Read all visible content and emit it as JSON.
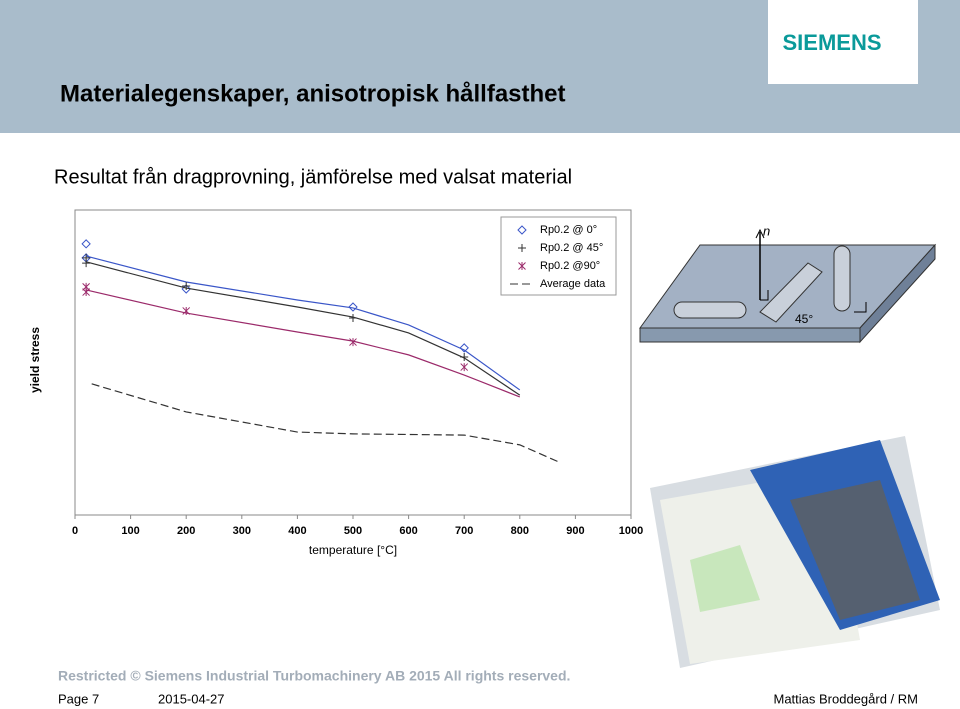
{
  "header": {
    "title": "Materialegenskaper, anisotropisk hållfasthet",
    "logo": "SIEMENS"
  },
  "subtitle": "Resultat från dragprovning, jämförelse med valsat material",
  "chart_data": {
    "type": "scatter",
    "xlabel": "temperature [°C]",
    "ylabel": "yield stress",
    "xlim": [
      0,
      1000
    ],
    "xticks": [
      0,
      100,
      200,
      300,
      400,
      500,
      600,
      700,
      800,
      900,
      1000
    ],
    "ylim": [
      0,
      100
    ],
    "legend": "upper right",
    "series": [
      {
        "name": "Rp0.2 @ 0°",
        "color": "#3a56c8",
        "marker": "diamond",
        "x": [
          20,
          20,
          200,
          500,
          700
        ],
        "values": [
          88.9,
          84.3,
          74.1,
          68.2,
          54.8
        ],
        "fit": {
          "x": [
            20,
            200,
            400,
            500,
            600,
            700,
            800
          ],
          "values": [
            84.9,
            76.4,
            70.5,
            67.9,
            62.3,
            54.1,
            41.0
          ]
        }
      },
      {
        "name": "Rp0.2 @ 45°",
        "color": "#333333",
        "marker": "plus",
        "x": [
          20,
          20,
          200,
          500,
          700
        ],
        "values": [
          84.3,
          82.6,
          75.1,
          64.6,
          51.8
        ],
        "fit": {
          "x": [
            20,
            200,
            400,
            500,
            600,
            700,
            800
          ],
          "values": [
            83.0,
            74.4,
            68.2,
            64.9,
            59.7,
            51.5,
            39.3
          ]
        }
      },
      {
        "name": "Rp0.2 @90°",
        "color": "#9b2a6a",
        "marker": "asterisk",
        "x": [
          20,
          20,
          200,
          500,
          700
        ],
        "values": [
          74.8,
          73.1,
          66.9,
          56.7,
          48.5
        ],
        "fit": {
          "x": [
            20,
            200,
            400,
            500,
            600,
            700,
            800
          ],
          "values": [
            73.8,
            66.2,
            60.0,
            57.0,
            52.5,
            45.9,
            38.7
          ]
        }
      },
      {
        "name": "Average data",
        "color": "#333333",
        "marker": "dashed-line",
        "x": [
          30,
          200,
          400,
          500,
          700,
          800,
          870
        ],
        "values": [
          43.0,
          33.8,
          27.2,
          26.6,
          26.2,
          23.0,
          17.4
        ]
      }
    ]
  },
  "diagram": {
    "normal": "n",
    "angle": "45°"
  },
  "footer": {
    "restricted": "Restricted © Siemens Industrial Turbomachinery AB 2015 All rights reserved.",
    "page": "Page 7",
    "date": "2015-04-27",
    "author": "Mattias Broddegård / RM"
  }
}
